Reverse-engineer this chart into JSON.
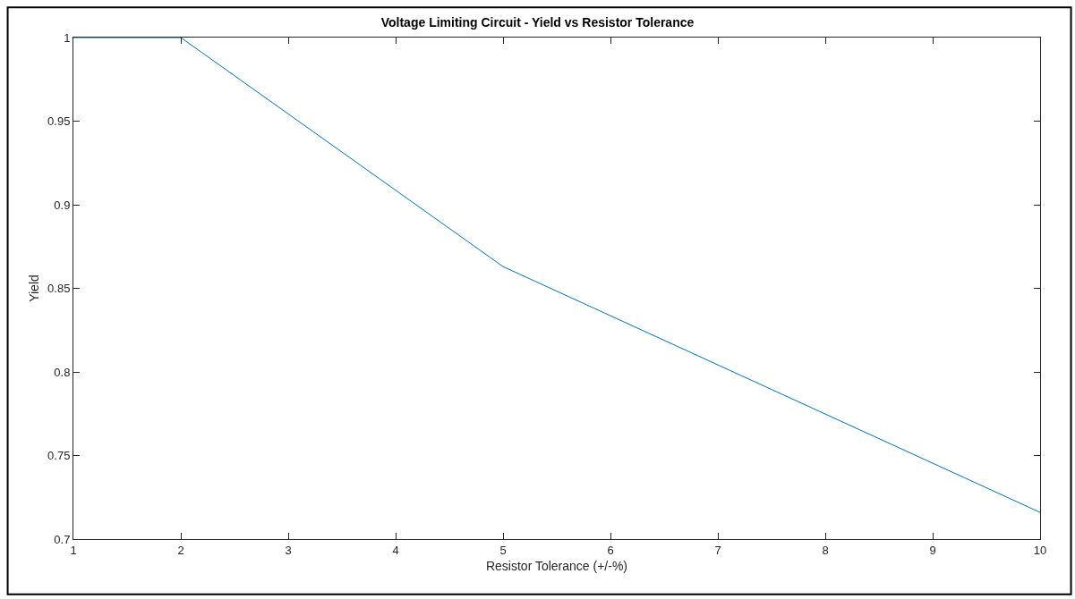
{
  "chart_data": {
    "type": "line",
    "title": "Voltage Limiting Circuit - Yield vs Resistor Tolerance",
    "xlabel": "Resistor Tolerance (+/-%)",
    "ylabel": "Yield",
    "x": [
      1,
      2,
      5,
      10
    ],
    "series": [
      {
        "color": "#0072bd",
        "values": [
          1,
          1,
          0.863,
          0.716
        ]
      }
    ],
    "xlim": [
      1,
      10
    ],
    "xticks": [
      1,
      2,
      3,
      4,
      5,
      6,
      7,
      8,
      9,
      10
    ],
    "ylim": [
      0.7,
      1
    ],
    "yticks": [
      0.7,
      0.75,
      0.8,
      0.85,
      0.9,
      0.95,
      1
    ],
    "legend": false,
    "marker": "none",
    "line_style": "solid"
  }
}
